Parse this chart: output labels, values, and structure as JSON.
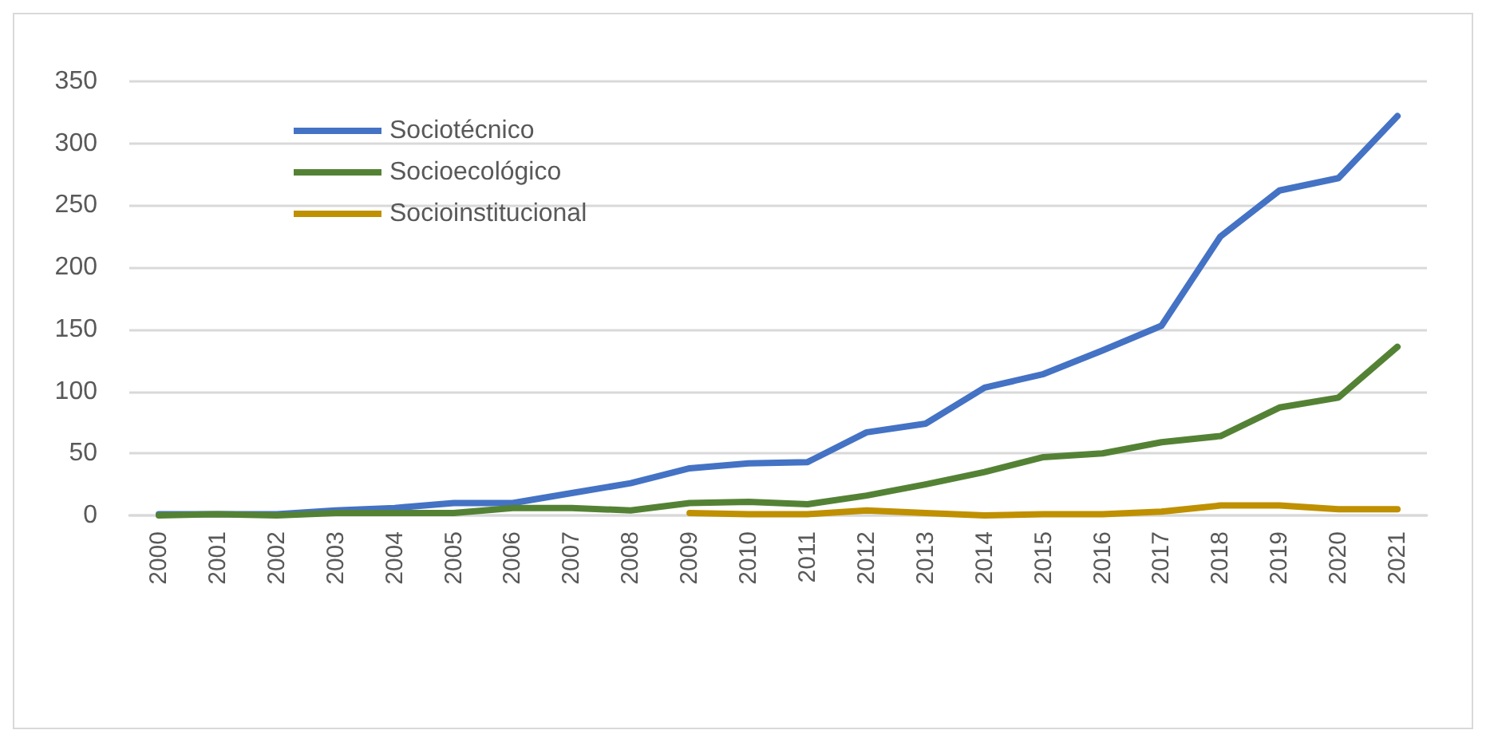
{
  "chart_data": {
    "type": "line",
    "categories": [
      "2000",
      "2001",
      "2002",
      "2003",
      "2004",
      "2005",
      "2006",
      "2007",
      "2008",
      "2009",
      "2010",
      "2011",
      "2012",
      "2013",
      "2014",
      "2015",
      "2016",
      "2017",
      "2018",
      "2019",
      "2020",
      "2021"
    ],
    "series": [
      {
        "name": "Sociotécnico",
        "color": "#4472c4",
        "values": [
          1,
          1,
          1,
          4,
          6,
          10,
          10,
          18,
          26,
          38,
          42,
          43,
          67,
          74,
          103,
          114,
          133,
          153,
          225,
          262,
          272,
          322
        ]
      },
      {
        "name": "Socioecológico",
        "color": "#548235",
        "values": [
          0,
          1,
          0,
          2,
          2,
          2,
          6,
          6,
          4,
          10,
          11,
          9,
          16,
          25,
          35,
          47,
          50,
          59,
          64,
          87,
          95,
          136
        ]
      },
      {
        "name": "Socioinstitucional",
        "color": "#bf9000",
        "values": [
          null,
          null,
          null,
          null,
          null,
          null,
          null,
          null,
          null,
          2,
          1,
          1,
          4,
          2,
          0,
          1,
          1,
          3,
          8,
          8,
          5,
          5
        ]
      }
    ],
    "ylim": [
      0,
      350
    ],
    "yticks": [
      0,
      50,
      100,
      150,
      200,
      250,
      300,
      350
    ],
    "grid": "y",
    "legend": "top left",
    "marker": "none",
    "line_style": "solid"
  }
}
